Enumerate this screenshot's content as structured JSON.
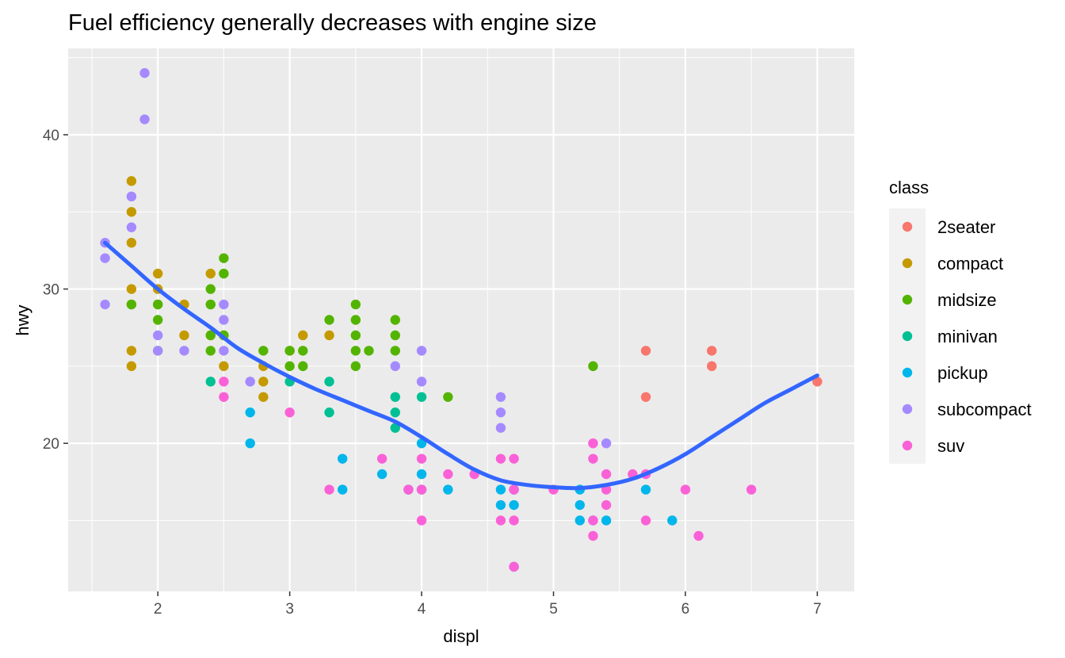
{
  "chart_data": {
    "type": "scatter",
    "title": "Fuel efficiency generally decreases with engine size",
    "xlabel": "displ",
    "ylabel": "hwy",
    "xlim": [
      1.32,
      7.28
    ],
    "ylim": [
      10.4,
      45.6
    ],
    "x_ticks": [
      2,
      3,
      4,
      5,
      6,
      7
    ],
    "y_ticks": [
      20,
      30,
      40
    ],
    "x_tick_labels": [
      "2",
      "3",
      "4",
      "5",
      "6",
      "7"
    ],
    "y_tick_labels": [
      "20",
      "30",
      "40"
    ],
    "grid": true,
    "legend": {
      "title": "class",
      "position": "right"
    },
    "series": [
      {
        "name": "2seater",
        "color": "#F8766D",
        "points": [
          [
            5.7,
            26
          ],
          [
            5.7,
            23
          ],
          [
            6.2,
            26
          ],
          [
            6.2,
            25
          ],
          [
            7.0,
            24
          ]
        ]
      },
      {
        "name": "compact",
        "color": "#C49A00",
        "points": [
          [
            1.8,
            37
          ],
          [
            1.8,
            35
          ],
          [
            1.8,
            33
          ],
          [
            1.8,
            30
          ],
          [
            1.8,
            29
          ],
          [
            1.8,
            26
          ],
          [
            1.8,
            25
          ],
          [
            2.0,
            31
          ],
          [
            2.0,
            30
          ],
          [
            2.0,
            29
          ],
          [
            2.2,
            29
          ],
          [
            2.2,
            27
          ],
          [
            2.4,
            31
          ],
          [
            2.4,
            29
          ],
          [
            2.4,
            27
          ],
          [
            2.5,
            27
          ],
          [
            2.5,
            25
          ],
          [
            2.8,
            25
          ],
          [
            2.8,
            24
          ],
          [
            2.8,
            23
          ],
          [
            3.0,
            26
          ],
          [
            3.1,
            27
          ],
          [
            3.3,
            27
          ]
        ]
      },
      {
        "name": "midsize",
        "color": "#53B400",
        "points": [
          [
            1.8,
            29
          ],
          [
            2.0,
            29
          ],
          [
            2.0,
            28
          ],
          [
            2.0,
            26
          ],
          [
            2.4,
            30
          ],
          [
            2.4,
            29
          ],
          [
            2.4,
            27
          ],
          [
            2.4,
            26
          ],
          [
            2.5,
            32
          ],
          [
            2.5,
            31
          ],
          [
            2.5,
            27
          ],
          [
            2.8,
            26
          ],
          [
            3.0,
            26
          ],
          [
            3.0,
            25
          ],
          [
            3.1,
            26
          ],
          [
            3.1,
            25
          ],
          [
            3.3,
            28
          ],
          [
            3.5,
            29
          ],
          [
            3.5,
            28
          ],
          [
            3.5,
            27
          ],
          [
            3.5,
            26
          ],
          [
            3.5,
            25
          ],
          [
            3.6,
            26
          ],
          [
            3.8,
            28
          ],
          [
            3.8,
            27
          ],
          [
            3.8,
            26
          ],
          [
            4.2,
            23
          ],
          [
            5.3,
            25
          ]
        ]
      },
      {
        "name": "minivan",
        "color": "#00C094",
        "points": [
          [
            2.4,
            24
          ],
          [
            3.0,
            24
          ],
          [
            3.3,
            24
          ],
          [
            3.3,
            22
          ],
          [
            3.8,
            23
          ],
          [
            3.8,
            22
          ],
          [
            3.8,
            21
          ],
          [
            4.0,
            23
          ]
        ]
      },
      {
        "name": "pickup",
        "color": "#00B6EB",
        "points": [
          [
            2.7,
            22
          ],
          [
            2.7,
            20
          ],
          [
            3.4,
            19
          ],
          [
            3.4,
            17
          ],
          [
            3.7,
            18
          ],
          [
            3.9,
            17
          ],
          [
            4.0,
            20
          ],
          [
            4.0,
            18
          ],
          [
            4.0,
            17
          ],
          [
            4.2,
            17
          ],
          [
            4.6,
            17
          ],
          [
            4.6,
            16
          ],
          [
            4.7,
            17
          ],
          [
            4.7,
            16
          ],
          [
            4.7,
            12
          ],
          [
            5.2,
            17
          ],
          [
            5.2,
            16
          ],
          [
            5.2,
            15
          ],
          [
            5.3,
            15
          ],
          [
            5.4,
            15
          ],
          [
            5.7,
            17
          ],
          [
            5.9,
            15
          ]
        ]
      },
      {
        "name": "subcompact",
        "color": "#A58AFF",
        "points": [
          [
            1.6,
            33
          ],
          [
            1.6,
            32
          ],
          [
            1.6,
            29
          ],
          [
            1.8,
            36
          ],
          [
            1.8,
            34
          ],
          [
            1.9,
            44
          ],
          [
            1.9,
            41
          ],
          [
            2.0,
            27
          ],
          [
            2.0,
            26
          ],
          [
            2.2,
            26
          ],
          [
            2.5,
            29
          ],
          [
            2.5,
            28
          ],
          [
            2.5,
            26
          ],
          [
            2.7,
            24
          ],
          [
            3.8,
            25
          ],
          [
            4.0,
            26
          ],
          [
            4.0,
            24
          ],
          [
            4.6,
            23
          ],
          [
            4.6,
            22
          ],
          [
            4.6,
            21
          ],
          [
            5.4,
            20
          ]
        ]
      },
      {
        "name": "suv",
        "color": "#FB61D7",
        "points": [
          [
            2.5,
            24
          ],
          [
            2.5,
            23
          ],
          [
            3.0,
            22
          ],
          [
            3.3,
            17
          ],
          [
            3.7,
            19
          ],
          [
            3.9,
            17
          ],
          [
            4.0,
            19
          ],
          [
            4.0,
            17
          ],
          [
            4.0,
            15
          ],
          [
            4.2,
            18
          ],
          [
            4.4,
            18
          ],
          [
            4.6,
            19
          ],
          [
            4.6,
            15
          ],
          [
            4.7,
            19
          ],
          [
            4.7,
            17
          ],
          [
            4.7,
            15
          ],
          [
            4.7,
            12
          ],
          [
            5.0,
            17
          ],
          [
            5.3,
            20
          ],
          [
            5.3,
            19
          ],
          [
            5.3,
            15
          ],
          [
            5.3,
            14
          ],
          [
            5.4,
            18
          ],
          [
            5.4,
            17
          ],
          [
            5.4,
            16
          ],
          [
            5.6,
            18
          ],
          [
            5.7,
            18
          ],
          [
            5.7,
            15
          ],
          [
            6.0,
            17
          ],
          [
            6.1,
            14
          ],
          [
            6.5,
            17
          ]
        ]
      }
    ],
    "smooth": {
      "color": "#3366FF",
      "points": [
        [
          1.6,
          33.0
        ],
        [
          1.8,
          31.5
        ],
        [
          2.0,
          30.0
        ],
        [
          2.2,
          28.7
        ],
        [
          2.4,
          27.5
        ],
        [
          2.6,
          26.2
        ],
        [
          2.8,
          25.2
        ],
        [
          3.0,
          24.3
        ],
        [
          3.2,
          23.5
        ],
        [
          3.4,
          22.8
        ],
        [
          3.6,
          22.1
        ],
        [
          3.8,
          21.4
        ],
        [
          4.0,
          20.4
        ],
        [
          4.2,
          19.3
        ],
        [
          4.4,
          18.3
        ],
        [
          4.6,
          17.6
        ],
        [
          4.8,
          17.3
        ],
        [
          5.0,
          17.15
        ],
        [
          5.2,
          17.1
        ],
        [
          5.4,
          17.3
        ],
        [
          5.6,
          17.7
        ],
        [
          5.8,
          18.4
        ],
        [
          6.0,
          19.3
        ],
        [
          6.2,
          20.4
        ],
        [
          6.4,
          21.5
        ],
        [
          6.6,
          22.6
        ],
        [
          6.8,
          23.5
        ],
        [
          7.0,
          24.4
        ]
      ]
    }
  }
}
